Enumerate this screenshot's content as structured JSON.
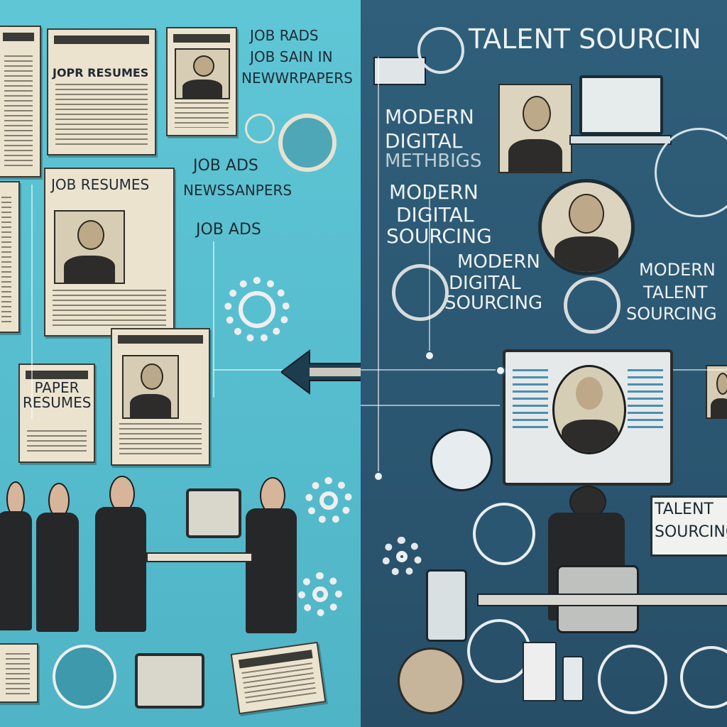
{
  "left": {
    "labels": {
      "job_rads": "JOB RADS",
      "job_sain_in": "JOB SAIN IN",
      "newwrpapers": "NEWWRPAPERS",
      "jopr_resumes": "JOPR RESUMES",
      "job_resumes": "JOB RESUMES",
      "job_ads_1": "JOB ADS",
      "newssanpers": "NEWSSANPERS",
      "job_ads_2": "JOB ADS",
      "paper_resumes": "PAPER RESUMES"
    }
  },
  "right": {
    "labels": {
      "title": "TALENT SOURCIN",
      "modern_1": "MODERN",
      "digital_1": "DIGITAL",
      "methbigs": "METHBIGS",
      "modern_2": "MODERN",
      "digital_2": "DIGITAL",
      "sourcing_2": "SOURCING",
      "modern_3": "MODERN",
      "digital_3": "DIGITAL",
      "sourcing_3": "SOURCING",
      "modern_4": "MODERN",
      "talent_4": "TALENT",
      "sourcing_4": "SOURCING",
      "talent_sign_1": "TALENT",
      "talent_sign_2": "SOURCING"
    }
  },
  "colors": {
    "left_bg": "#5fc6d6",
    "right_bg": "#2f5f7a",
    "paper": "#ece3cf",
    "ink": "#1f2a33"
  },
  "icons": [
    "newspaper-icon",
    "gear-icon",
    "arrow-double-icon",
    "globe-icon",
    "user-icon",
    "laptop-icon",
    "network-icon",
    "monitor-icon",
    "typewriter-icon",
    "tablet-icon"
  ]
}
